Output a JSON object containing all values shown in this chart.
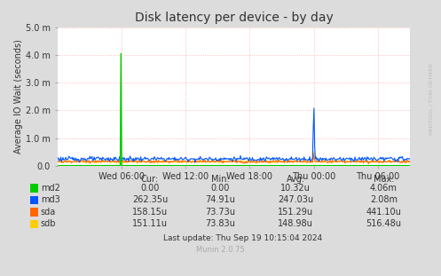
{
  "title": "Disk latency per device - by day",
  "ylabel": "Average IO Wait (seconds)",
  "background_color": "#dcdcdc",
  "plot_bg_color": "#ffffff",
  "grid_color": "#ff9999",
  "ylim": [
    0,
    0.005
  ],
  "yticks": [
    0.0,
    0.001,
    0.002,
    0.003,
    0.004,
    0.005
  ],
  "ytick_labels": [
    "0.0",
    "1.0 m",
    "2.0 m",
    "3.0 m",
    "4.0 m",
    "5.0 m"
  ],
  "xtick_labels": [
    "Wed 06:00",
    "Wed 12:00",
    "Wed 18:00",
    "Thu 00:00",
    "Thu 06:00"
  ],
  "colors": {
    "md2": "#00cc00",
    "md3": "#0055ff",
    "sda": "#ff6600",
    "sdb": "#ffcc00"
  },
  "table_data": {
    "headers": [
      "Cur:",
      "Min:",
      "Avg:",
      "Max:"
    ],
    "rows": [
      [
        "md2",
        "0.00",
        "0.00",
        "10.32u",
        "4.06m"
      ],
      [
        "md3",
        "262.35u",
        "74.91u",
        "247.03u",
        "2.08m"
      ],
      [
        "sda",
        "158.15u",
        "73.73u",
        "151.29u",
        "441.10u"
      ],
      [
        "sdb",
        "151.11u",
        "73.83u",
        "148.98u",
        "516.48u"
      ]
    ]
  },
  "last_update": "Last update: Thu Sep 19 10:15:04 2024",
  "munin_version": "Munin 2.0.75",
  "rrdtool_label": "RRDTOOL / TOBI OETIKER",
  "total_hours": 33.0,
  "xtick_hours": [
    6,
    12,
    18,
    24,
    30
  ],
  "n_points": 500,
  "md3_base": 0.00024,
  "sda_base": 0.00015,
  "sdb_base": 0.00014,
  "md2_spike_hour": 6,
  "md2_spike_val": 0.00406,
  "md3_spike_hour": 24,
  "md3_spike_val": 0.00208,
  "md3_pre_spike_val": 0.00135,
  "sda_spike_val": 0.00044,
  "sdb_spike_val": 0.00052
}
